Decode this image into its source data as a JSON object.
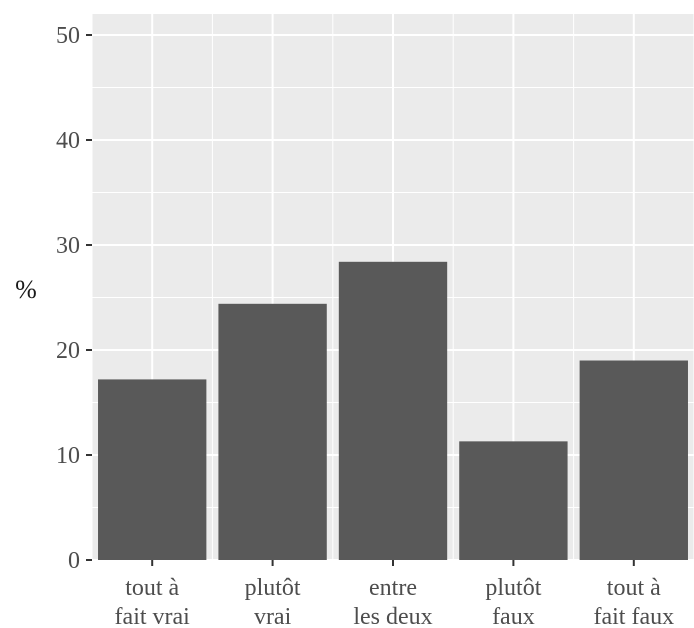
{
  "chart_data": {
    "type": "bar",
    "title": "",
    "xlabel": "",
    "ylabel": "%",
    "categories": [
      [
        "tout à",
        "fait vrai"
      ],
      [
        "plutôt",
        "vrai"
      ],
      [
        "entre",
        "les deux"
      ],
      [
        "plutôt",
        "faux"
      ],
      [
        "tout à",
        "fait faux"
      ]
    ],
    "values": [
      17.2,
      24.4,
      28.4,
      11.3,
      19.0
    ],
    "ylim": [
      0,
      52
    ],
    "yticks": [
      "0",
      "10",
      "20",
      "30",
      "40",
      "50"
    ],
    "grid": true,
    "legend": "none",
    "colors": {
      "panel": "#ebebeb",
      "grid": "#ffffff",
      "bar": "#595959",
      "tick": "#333333",
      "text": "#4d4d4d"
    }
  }
}
